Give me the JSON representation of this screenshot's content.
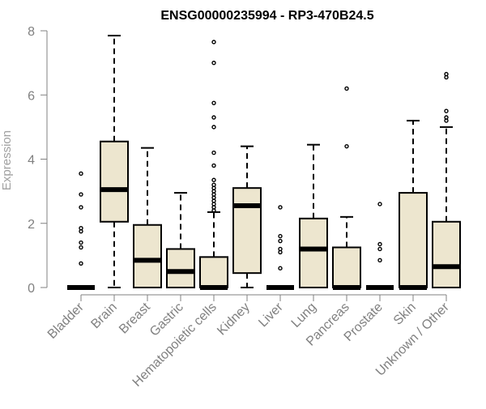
{
  "chart_data": {
    "type": "boxplot",
    "title": "ENSG00000235994 - RP3-470B24.5",
    "xlabel": "",
    "ylabel": "Expression",
    "ylim": [
      0,
      8
    ],
    "yticks": [
      0,
      2,
      4,
      6,
      8
    ],
    "grid": false,
    "legend": "none",
    "colors": {
      "box_fill": "#ede6cf",
      "box_stroke": "#000000",
      "axis": "#808080"
    },
    "categories": [
      "Bladder",
      "Brain",
      "Breast",
      "Gastric",
      "Hematopoietic cells",
      "Kidney",
      "Liver",
      "Lung",
      "Pancreas",
      "Prostate",
      "Skin",
      "Unknown / Other"
    ],
    "boxes": [
      {
        "category": "Bladder",
        "whisker_low": 0,
        "q1": 0,
        "median": 0,
        "q3": 0,
        "whisker_high": 0,
        "outliers": [
          0.75,
          1.25,
          1.4,
          1.75,
          1.85,
          2.5,
          2.9,
          3.55
        ]
      },
      {
        "category": "Brain",
        "whisker_low": 0,
        "q1": 2.05,
        "median": 3.05,
        "q3": 4.55,
        "whisker_high": 7.85,
        "outliers": []
      },
      {
        "category": "Breast",
        "whisker_low": 0,
        "q1": 0,
        "median": 0.85,
        "q3": 1.95,
        "whisker_high": 4.35,
        "outliers": []
      },
      {
        "category": "Gastric",
        "whisker_low": 0,
        "q1": 0,
        "median": 0.5,
        "q3": 1.2,
        "whisker_high": 2.95,
        "outliers": []
      },
      {
        "category": "Hematopoietic cells",
        "whisker_low": 0,
        "q1": 0,
        "median": 0,
        "q3": 0.95,
        "whisker_high": 2.35,
        "outliers": [
          2.4,
          2.5,
          2.6,
          2.7,
          2.8,
          2.9,
          3.0,
          3.1,
          3.2,
          3.35,
          3.8,
          4.2,
          5.0,
          5.3,
          5.75,
          7.0,
          7.65
        ]
      },
      {
        "category": "Kidney",
        "whisker_low": 0,
        "q1": 0.45,
        "median": 2.55,
        "q3": 3.1,
        "whisker_high": 4.4,
        "outliers": []
      },
      {
        "category": "Liver",
        "whisker_low": 0,
        "q1": 0,
        "median": 0,
        "q3": 0,
        "whisker_high": 0,
        "outliers": [
          0.6,
          1.1,
          1.2,
          1.45,
          1.6,
          2.5
        ]
      },
      {
        "category": "Lung",
        "whisker_low": 0,
        "q1": 0,
        "median": 1.2,
        "q3": 2.15,
        "whisker_high": 4.45,
        "outliers": []
      },
      {
        "category": "Pancreas",
        "whisker_low": 0,
        "q1": 0,
        "median": 0,
        "q3": 1.25,
        "whisker_high": 2.2,
        "outliers": [
          4.4,
          6.2
        ]
      },
      {
        "category": "Prostate",
        "whisker_low": 0,
        "q1": 0,
        "median": 0,
        "q3": 0,
        "whisker_high": 0,
        "outliers": [
          0.85,
          1.2,
          1.35,
          2.6
        ]
      },
      {
        "category": "Skin",
        "whisker_low": 0,
        "q1": 0,
        "median": 0,
        "q3": 2.95,
        "whisker_high": 5.2,
        "outliers": []
      },
      {
        "category": "Unknown / Other",
        "whisker_low": 0,
        "q1": 0,
        "median": 0.65,
        "q3": 2.05,
        "whisker_high": 5.0,
        "outliers": [
          5.2,
          5.3,
          5.5,
          6.55,
          6.65
        ]
      }
    ]
  }
}
